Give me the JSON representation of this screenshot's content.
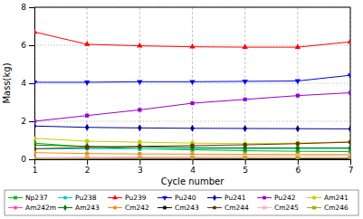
{
  "chart_data": {
    "type": "line",
    "x": [
      1,
      2,
      3,
      4,
      5,
      6,
      7
    ],
    "series": [
      {
        "name": "Np237",
        "color": "#00bb00",
        "marker": "square",
        "values": [
          0.85,
          0.65,
          0.55,
          0.5,
          0.45,
          0.42,
          0.4
        ]
      },
      {
        "name": "Pu238",
        "color": "#00cccc",
        "marker": "circle",
        "values": [
          0.55,
          0.55,
          0.55,
          0.56,
          0.56,
          0.57,
          0.57
        ]
      },
      {
        "name": "Pu239",
        "color": "#ff0000",
        "marker": "triangle-up",
        "values": [
          6.7,
          6.05,
          5.97,
          5.92,
          5.9,
          5.9,
          6.18
        ]
      },
      {
        "name": "Pu240",
        "color": "#0000ee",
        "marker": "triangle-down",
        "values": [
          4.05,
          4.05,
          4.08,
          4.08,
          4.1,
          4.12,
          4.42
        ]
      },
      {
        "name": "Pu241",
        "color": "#000099",
        "marker": "diamond",
        "values": [
          1.75,
          1.68,
          1.65,
          1.63,
          1.62,
          1.61,
          1.6
        ]
      },
      {
        "name": "Pu242",
        "color": "#9900cc",
        "marker": "square",
        "values": [
          2.0,
          2.3,
          2.6,
          2.95,
          3.15,
          3.35,
          3.5
        ]
      },
      {
        "name": "Am241",
        "color": "#cccc00",
        "marker": "square",
        "values": [
          1.1,
          0.95,
          0.9,
          0.85,
          0.82,
          0.85,
          0.92
        ]
      },
      {
        "name": "Am242m",
        "color": "#ff44bb",
        "marker": "circle",
        "values": [
          0.05,
          0.05,
          0.05,
          0.05,
          0.05,
          0.05,
          0.05
        ]
      },
      {
        "name": "Am243",
        "color": "#007700",
        "marker": "diamond",
        "values": [
          0.75,
          0.68,
          0.65,
          0.62,
          0.6,
          0.6,
          0.6
        ]
      },
      {
        "name": "Cm242",
        "color": "#ff8800",
        "marker": "circle",
        "values": [
          0.35,
          0.3,
          0.28,
          0.27,
          0.26,
          0.25,
          0.25
        ]
      },
      {
        "name": "Cm243",
        "color": "#111111",
        "marker": "square",
        "values": [
          0.02,
          0.02,
          0.02,
          0.02,
          0.02,
          0.02,
          0.02
        ]
      },
      {
        "name": "Cm244",
        "color": "#663300",
        "marker": "circle",
        "values": [
          0.55,
          0.62,
          0.68,
          0.72,
          0.76,
          0.82,
          0.9
        ]
      },
      {
        "name": "Cm245",
        "color": "#ffaacc",
        "marker": "x",
        "values": [
          0.08,
          0.1,
          0.12,
          0.14,
          0.16,
          0.18,
          0.2
        ]
      },
      {
        "name": "Cm246",
        "color": "#aaaa00",
        "marker": "x",
        "values": [
          0.02,
          0.03,
          0.04,
          0.05,
          0.06,
          0.07,
          0.08
        ]
      }
    ],
    "xlabel": "Cycle number",
    "ylabel": "Mass(kg)",
    "xlim": [
      1,
      7
    ],
    "ylim": [
      0,
      8
    ],
    "xticks": [
      1,
      2,
      3,
      4,
      5,
      6,
      7
    ],
    "yticks": [
      0,
      2,
      4,
      6,
      8
    ],
    "grid": true,
    "legend": "bottom"
  }
}
